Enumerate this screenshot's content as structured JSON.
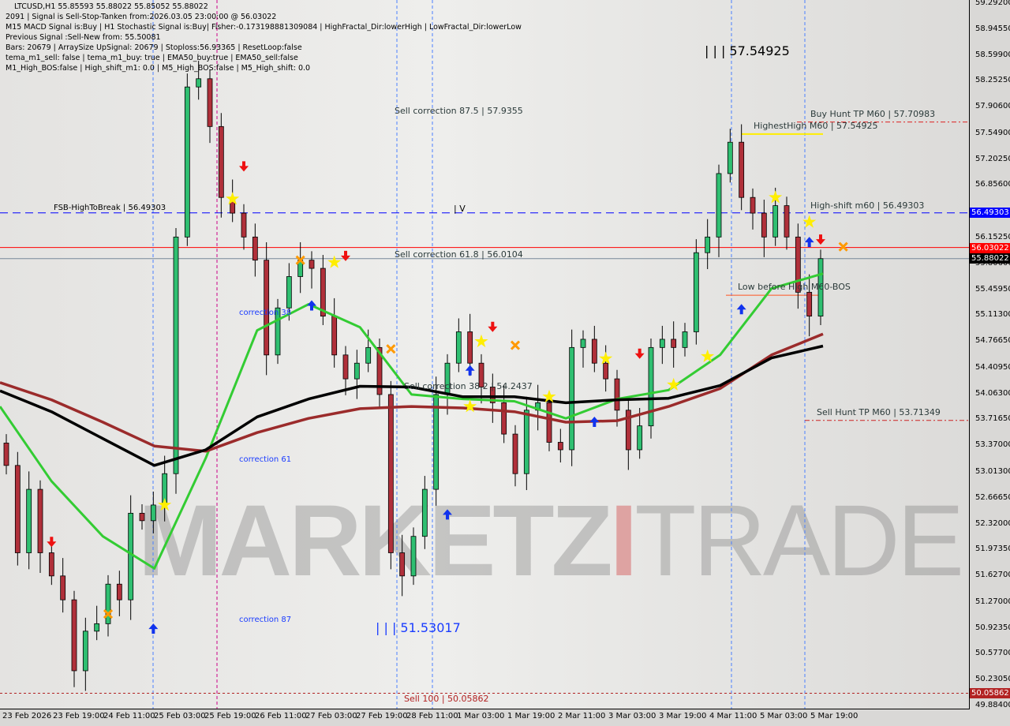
{
  "header": {
    "symbol_line": "LTCUSD,H1  55.85593 55.88022 55.85052 55.88022",
    "lines": [
      "2091 | Signal is Sell-Stop-Tanken from:2026.03.05 23:00:00 @ 56.03022",
      "M15 MACD Signal is:Buy | H1 Stochastic Signal is:Buy| Fisher:-0.173198881309084 | HighFractal_Dir:lowerHigh | LowFractal_Dir:lowerLow",
      "Previous Signal :Sell-New from: 55.50081",
      "Bars: 20679 | ArraySize UpSignal: 20679 | Stoploss:56.93365 | ResetLoop:false",
      "tema_m1_sell: false | tema_m1_buy: true | EMA50_buy:true | EMA50_sell:false",
      "M1_High_BOS:false | High_shift_m1: 0.0 | M5_High_BOS:false | M5_High_shift: 0.0"
    ]
  },
  "watermark": {
    "part1": "MARKETZ",
    "part2": "I",
    "part3": "TRADE"
  },
  "colors": {
    "bull": "#2fbf71",
    "bear": "#b0303a",
    "ema_fast": "#33cc33",
    "ma_black": "#000000",
    "ma_brown": "#9b2b2b",
    "fsb": "#0000ff",
    "signal": "#ff0000",
    "current": "#000000",
    "sell100": "#b22222"
  },
  "chart_data": {
    "type": "candlestick",
    "title": "LTCUSD,H1",
    "ylim": [
      49.884,
      59.292
    ],
    "y_ticks": [
      "59.29200",
      "58.94550",
      "58.59900",
      "58.25250",
      "57.90600",
      "57.54900",
      "57.20250",
      "56.85600",
      "56.15250",
      "55.80600",
      "55.45950",
      "55.11300",
      "54.76650",
      "54.40950",
      "54.06300",
      "53.71650",
      "53.37000",
      "53.01300",
      "52.66650",
      "52.32000",
      "51.97350",
      "51.62700",
      "51.27000",
      "50.92350",
      "50.57700",
      "50.23050",
      "49.88400"
    ],
    "x_ticks": [
      "23 Feb 2026",
      "23 Feb 19:00",
      "24 Feb 11:00",
      "25 Feb 03:00",
      "25 Feb 19:00",
      "26 Feb 11:00",
      "27 Feb 03:00",
      "27 Feb 19:00",
      "28 Feb 11:00",
      "1 Mar 03:00",
      "1 Mar 19:00",
      "2 Mar 11:00",
      "3 Mar 03:00",
      "3 Mar 19:00",
      "4 Mar 11:00",
      "5 Mar 03:00",
      "5 Mar 19:00"
    ],
    "closes": [
      53.11,
      51.94,
      52.79,
      51.94,
      51.63,
      51.31,
      50.36,
      50.89,
      50.99,
      51.52,
      51.31,
      52.47,
      52.37,
      52.58,
      53.0,
      56.17,
      58.18,
      58.29,
      57.65,
      56.7,
      56.49,
      56.17,
      55.86,
      54.59,
      55.22,
      55.64,
      55.86,
      55.75,
      55.11,
      54.59,
      54.27,
      54.48,
      54.69,
      54.06,
      51.94,
      51.63,
      52.16,
      52.79,
      54.06,
      54.48,
      54.9,
      54.48,
      54.16,
      53.95,
      53.53,
      53.0,
      53.85,
      53.95,
      53.42,
      53.32,
      54.69,
      54.8,
      54.48,
      54.27,
      53.85,
      53.32,
      53.64,
      54.69,
      54.8,
      54.69,
      54.9,
      55.96,
      56.17,
      57.02,
      57.44,
      56.7,
      56.49,
      56.17,
      56.59,
      56.17,
      55.43,
      55.11,
      55.88
    ],
    "series": [
      {
        "key": "ema_fast",
        "values": [
          53.9,
          52.9,
          52.16,
          51.73,
          53.21,
          54.92,
          55.27,
          54.96,
          54.06,
          54.0,
          53.97,
          53.74,
          54.0,
          54.12,
          54.59,
          55.48,
          55.68
        ]
      },
      {
        "key": "ma_brown",
        "values": [
          54.22,
          53.99,
          53.69,
          53.37,
          53.3,
          53.55,
          53.74,
          53.87,
          53.9,
          53.88,
          53.83,
          53.69,
          53.71,
          53.9,
          54.14,
          54.59,
          54.87
        ]
      },
      {
        "key": "ma_black",
        "values": [
          54.11,
          53.83,
          53.47,
          53.11,
          53.32,
          53.76,
          54.0,
          54.17,
          54.16,
          54.03,
          54.03,
          53.95,
          53.99,
          54.01,
          54.18,
          54.55,
          54.71
        ]
      }
    ],
    "levels": {
      "fsb_high_to_break": {
        "label": "FSB-HighToBreak | 56.49303",
        "price": 56.49303,
        "tag": "56.49303"
      },
      "signal": {
        "price": 56.03022,
        "tag": "56.03022"
      },
      "current": {
        "price": 55.88022,
        "tag": "55.88022"
      },
      "sell100": {
        "label": "Sell 100 | 50.05862",
        "price": 50.05862,
        "tag": "50.05862"
      },
      "buy_hunt_tp": {
        "label": "Buy Hunt TP M60 | 57.70983",
        "price": 57.70983
      },
      "highest_high": {
        "label": "HighestHigh   M60 | 57.54925",
        "price": 57.54925
      },
      "high_shift": {
        "label": "High-shift m60 | 56.49303",
        "price": 56.49303
      },
      "low_before_high": {
        "label": "Low before High   M60-BOS",
        "price": 55.39
      },
      "sell_hunt_tp": {
        "label": "Sell Hunt TP M60 | 53.71349",
        "price": 53.71349
      }
    },
    "annotations": {
      "sell_corr_875": "Sell correction 87.5 | 57.9355",
      "sell_corr_618": "Sell correction 61.8 | 56.0104",
      "sell_corr_382": "Sell correction 38.2 | 54.2437",
      "corr38": "correction 38",
      "corr61": "correction 61",
      "corr87": "correction 87",
      "low_mark": "| | | 51.53017",
      "high_mark": "| | | 57.54925",
      "iv": "| V"
    },
    "markers": [
      {
        "type": "star",
        "bar": 20,
        "price": 56.68
      },
      {
        "type": "star",
        "bar": 29,
        "price": 55.83
      },
      {
        "type": "star",
        "bar": 42,
        "price": 54.77
      },
      {
        "type": "star",
        "bar": 41,
        "price": 53.9
      },
      {
        "type": "star",
        "bar": 48,
        "price": 54.03
      },
      {
        "type": "star",
        "bar": 53,
        "price": 54.54
      },
      {
        "type": "star",
        "bar": 59,
        "price": 54.19
      },
      {
        "type": "star",
        "bar": 62,
        "price": 54.57
      },
      {
        "type": "star",
        "bar": 68,
        "price": 56.7
      },
      {
        "type": "star",
        "bar": 71,
        "price": 56.37
      },
      {
        "type": "star",
        "bar": 14,
        "price": 52.58
      },
      {
        "type": "sell-arrow",
        "bar": 21,
        "price": 57.1
      },
      {
        "type": "sell-arrow",
        "bar": 30,
        "price": 55.9
      },
      {
        "type": "sell-arrow",
        "bar": 43,
        "price": 54.95
      },
      {
        "type": "sell-arrow",
        "bar": 56,
        "price": 54.59
      },
      {
        "type": "sell-arrow",
        "bar": 4,
        "price": 52.07
      },
      {
        "type": "sell-arrow",
        "bar": 72,
        "price": 56.12
      },
      {
        "type": "buy-arrow",
        "bar": 13,
        "price": 50.94
      },
      {
        "type": "buy-arrow",
        "bar": 27,
        "price": 55.27
      },
      {
        "type": "buy-arrow",
        "bar": 41,
        "price": 54.4
      },
      {
        "type": "buy-arrow",
        "bar": 52,
        "price": 53.71
      },
      {
        "type": "buy-arrow",
        "bar": 65,
        "price": 55.22
      },
      {
        "type": "buy-arrow",
        "bar": 71,
        "price": 56.12
      },
      {
        "type": "buy-arrow",
        "bar": 39,
        "price": 52.47
      },
      {
        "type": "cross",
        "bar": 9,
        "price": 51.12
      },
      {
        "type": "cross",
        "bar": 26,
        "price": 55.86
      },
      {
        "type": "cross",
        "bar": 45,
        "price": 54.72
      },
      {
        "type": "cross",
        "bar": 74,
        "price": 56.04
      },
      {
        "type": "cross",
        "bar": 34,
        "price": 54.67
      }
    ]
  }
}
